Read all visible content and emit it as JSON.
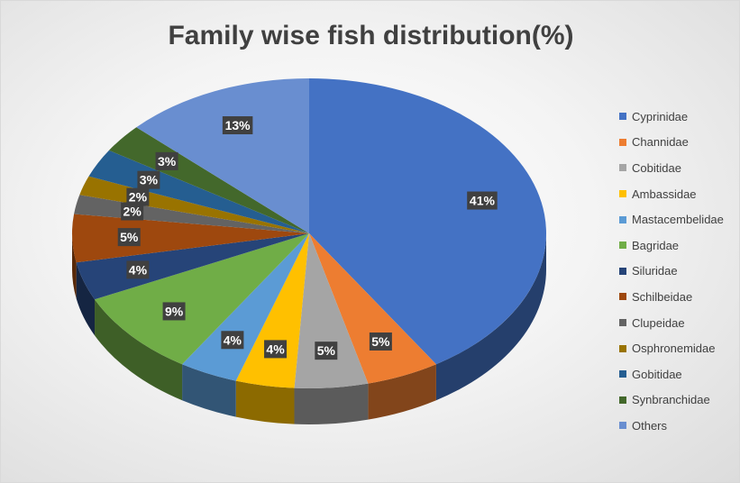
{
  "chart_data": {
    "type": "pie",
    "title": "Family wise fish distribution(%)",
    "legend_position": "right",
    "categories": [
      "Cyprinidae",
      "Channidae",
      "Cobitidae",
      "Ambassidae",
      "Mastacembelidae",
      "Bagridae",
      "Siluridae",
      "Schilbeidae",
      "Clupeidae",
      "Osphronemidae",
      "Gobitidae",
      "Synbranchidae",
      "Others"
    ],
    "values": [
      41,
      5,
      5,
      4,
      4,
      9,
      4,
      5,
      2,
      2,
      3,
      3,
      13
    ],
    "labels": [
      "41%",
      "5%",
      "5%",
      "4%",
      "4%",
      "9%",
      "4%",
      "5%",
      "2%",
      "2%",
      "3%",
      "3%",
      "13%"
    ],
    "colors": [
      "#4472c4",
      "#ed7d31",
      "#a5a5a5",
      "#ffc000",
      "#5b9bd5",
      "#70ad47",
      "#264478",
      "#9e480e",
      "#636363",
      "#997300",
      "#255e91",
      "#43682b",
      "#698ed0"
    ]
  }
}
